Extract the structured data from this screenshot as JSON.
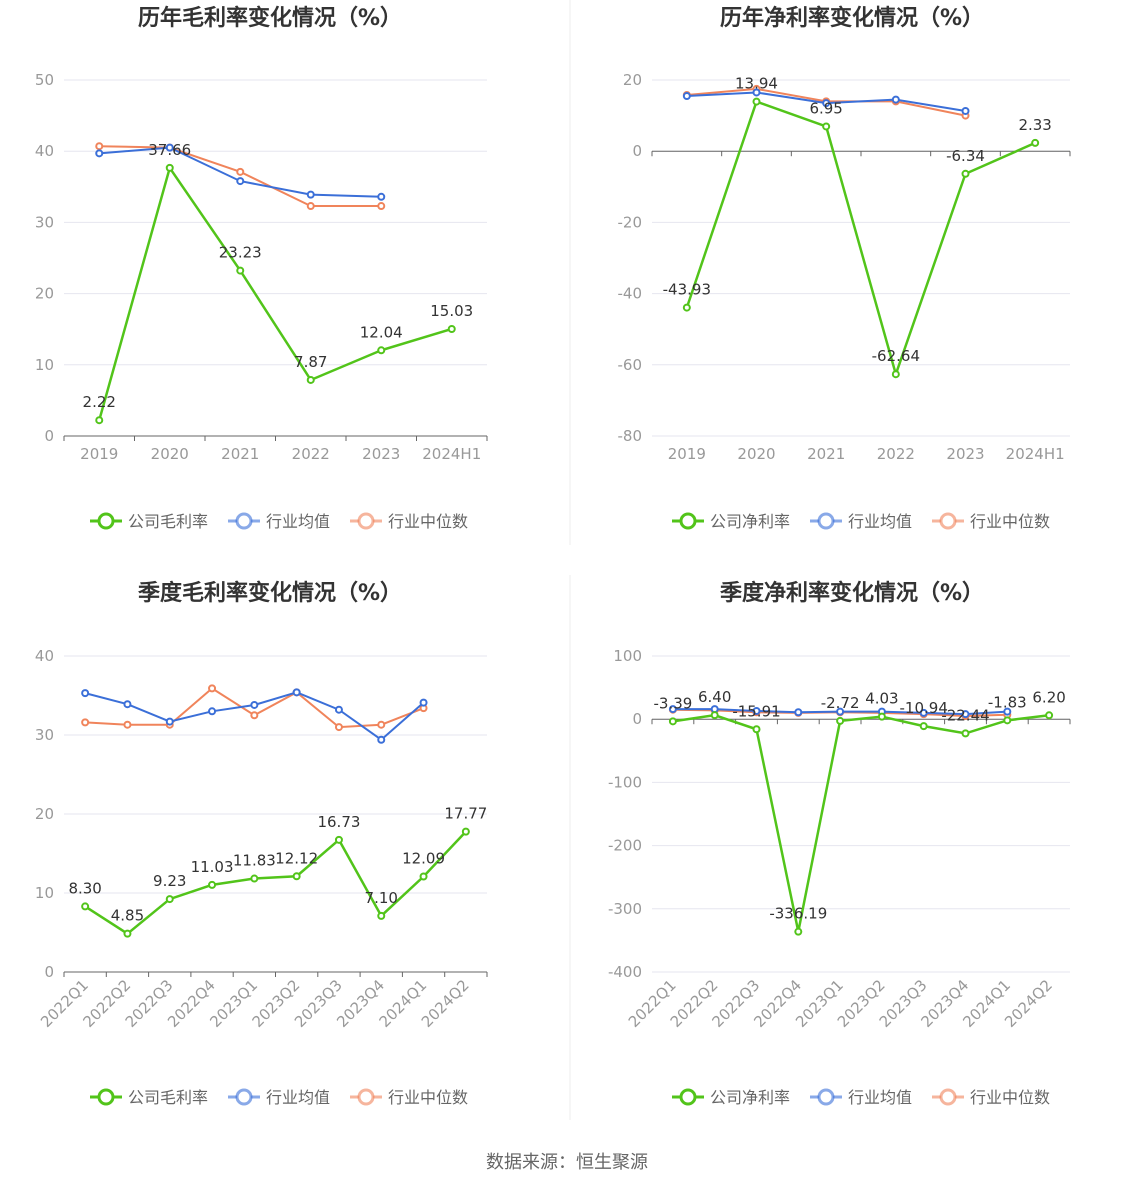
{
  "source": "数据来源：恒生聚源",
  "legend_labels": {
    "gross": [
      "公司毛利率",
      "行业均值",
      "行业中位数"
    ],
    "net": [
      "公司净利率",
      "行业均值",
      "行业中位数"
    ]
  },
  "colors": {
    "company": "#52c41a",
    "avg": "#3b6fd8",
    "median": "#f0845b",
    "grid": "#e6e6ef",
    "axis": "#666666"
  },
  "chart_data": [
    {
      "type": "line",
      "title": "历年毛利率变化情况（%）",
      "categories": [
        "2019",
        "2020",
        "2021",
        "2022",
        "2023",
        "2024H1"
      ],
      "ylim": [
        0,
        50
      ],
      "yticks": [
        0,
        10,
        20,
        30,
        40,
        50
      ],
      "grid": true,
      "legend": "bottom",
      "series": [
        {
          "name": "公司毛利率",
          "values": [
            2.22,
            37.66,
            23.23,
            7.87,
            12.04,
            15.03
          ],
          "labels": [
            "2.22",
            "37.66",
            "23.23",
            "7.87",
            "12.04",
            "15.03"
          ]
        },
        {
          "name": "行业均值",
          "values": [
            39.7,
            40.5,
            35.8,
            33.9,
            33.6,
            null
          ]
        },
        {
          "name": "行业中位数",
          "values": [
            40.7,
            40.5,
            37.1,
            32.3,
            32.3,
            null
          ]
        }
      ]
    },
    {
      "type": "line",
      "title": "历年净利率变化情况（%）",
      "categories": [
        "2019",
        "2020",
        "2021",
        "2022",
        "2023",
        "2024H1"
      ],
      "ylim": [
        -80,
        20
      ],
      "yticks": [
        -80,
        -60,
        -40,
        -20,
        0,
        20
      ],
      "grid": true,
      "legend": "bottom",
      "series": [
        {
          "name": "公司净利率",
          "values": [
            -43.93,
            13.94,
            6.95,
            -62.64,
            -6.34,
            2.33
          ],
          "labels": [
            "-43.93",
            "13.94",
            "6.95",
            "-62.64",
            "-6.34",
            "2.33"
          ]
        },
        {
          "name": "行业均值",
          "values": [
            15.5,
            16.5,
            13.5,
            14.5,
            11.3,
            null
          ]
        },
        {
          "name": "行业中位数",
          "values": [
            15.8,
            17.5,
            14.0,
            14.0,
            10.0,
            null
          ]
        }
      ]
    },
    {
      "type": "line",
      "title": "季度毛利率变化情况（%）",
      "categories": [
        "2022Q1",
        "2022Q2",
        "2022Q3",
        "2022Q4",
        "2023Q1",
        "2023Q2",
        "2023Q3",
        "2023Q4",
        "2024Q1",
        "2024Q2"
      ],
      "ylim": [
        0,
        40
      ],
      "yticks": [
        0,
        10,
        20,
        30,
        40
      ],
      "grid": true,
      "legend": "bottom",
      "series": [
        {
          "name": "公司毛利率",
          "values": [
            8.3,
            4.85,
            9.23,
            11.03,
            11.83,
            12.12,
            16.73,
            7.1,
            12.09,
            17.77
          ],
          "labels": [
            "8.30",
            "4.85",
            "9.23",
            "11.03",
            "11.83",
            "12.12",
            "16.73",
            "7.10",
            "12.09",
            "17.77"
          ]
        },
        {
          "name": "行业均值",
          "values": [
            35.3,
            33.9,
            31.7,
            33.0,
            33.8,
            35.4,
            33.2,
            29.4,
            34.1,
            null
          ]
        },
        {
          "name": "行业中位数",
          "values": [
            31.6,
            31.3,
            31.3,
            35.9,
            32.5,
            35.4,
            31.0,
            31.3,
            33.4,
            null
          ]
        }
      ]
    },
    {
      "type": "line",
      "title": "季度净利率变化情况（%）",
      "categories": [
        "2022Q1",
        "2022Q2",
        "2022Q3",
        "2022Q4",
        "2023Q1",
        "2023Q2",
        "2023Q3",
        "2023Q4",
        "2024Q1",
        "2024Q2"
      ],
      "ylim": [
        -400,
        100
      ],
      "yticks": [
        -400,
        -300,
        -200,
        -100,
        0,
        100
      ],
      "grid": true,
      "legend": "bottom",
      "series": [
        {
          "name": "公司净利率",
          "values": [
            -3.39,
            6.4,
            -15.91,
            -336.19,
            -2.72,
            4.03,
            -10.94,
            -22.44,
            -1.83,
            6.2
          ],
          "labels": [
            "-3.39",
            "6.40",
            "-15.91",
            "-336.19",
            "-2.72",
            "4.03",
            "-10.94",
            "-22.44",
            "-1.83",
            "6.20"
          ]
        },
        {
          "name": "行业均值",
          "values": [
            16,
            16,
            13,
            11,
            12,
            12,
            10,
            8,
            12,
            null
          ]
        },
        {
          "name": "行业中位数",
          "values": [
            15,
            14,
            11,
            10,
            11,
            10,
            8,
            5,
            7,
            null
          ]
        }
      ]
    }
  ]
}
